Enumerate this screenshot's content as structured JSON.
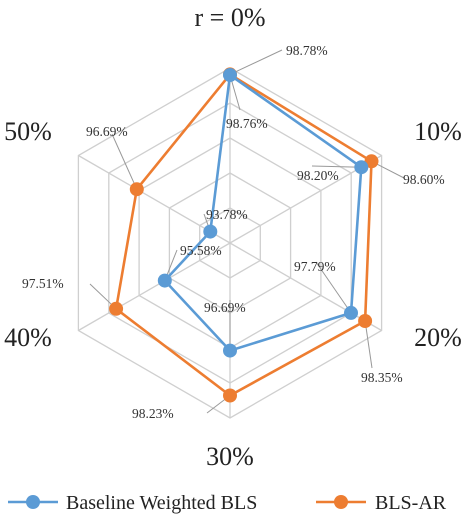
{
  "chart_data": {
    "type": "radar",
    "categories": [
      "r = 0%",
      "10%",
      "20%",
      "30%",
      "40%",
      "50%"
    ],
    "rlim": [
      93,
      99
    ],
    "grid_rings": [
      94.2,
      95.4,
      96.6,
      97.8,
      99.0
    ],
    "series": [
      {
        "name": "Baseline Weighted BLS",
        "color": "#5b9bd5",
        "values": [
          98.76,
          98.2,
          97.79,
          96.69,
          95.58,
          93.78
        ],
        "labels": [
          "98.76%",
          "98.20%",
          "97.79%",
          "96.69%",
          "95.58%",
          "93.78%"
        ]
      },
      {
        "name": "BLS-AR",
        "color": "#ed7d31",
        "values": [
          98.78,
          98.6,
          98.35,
          98.23,
          97.51,
          96.69
        ],
        "labels": [
          "98.78%",
          "98.60%",
          "98.35%",
          "98.23%",
          "97.51%",
          "96.69%"
        ]
      }
    ],
    "legend_position": "bottom",
    "grid": true
  }
}
